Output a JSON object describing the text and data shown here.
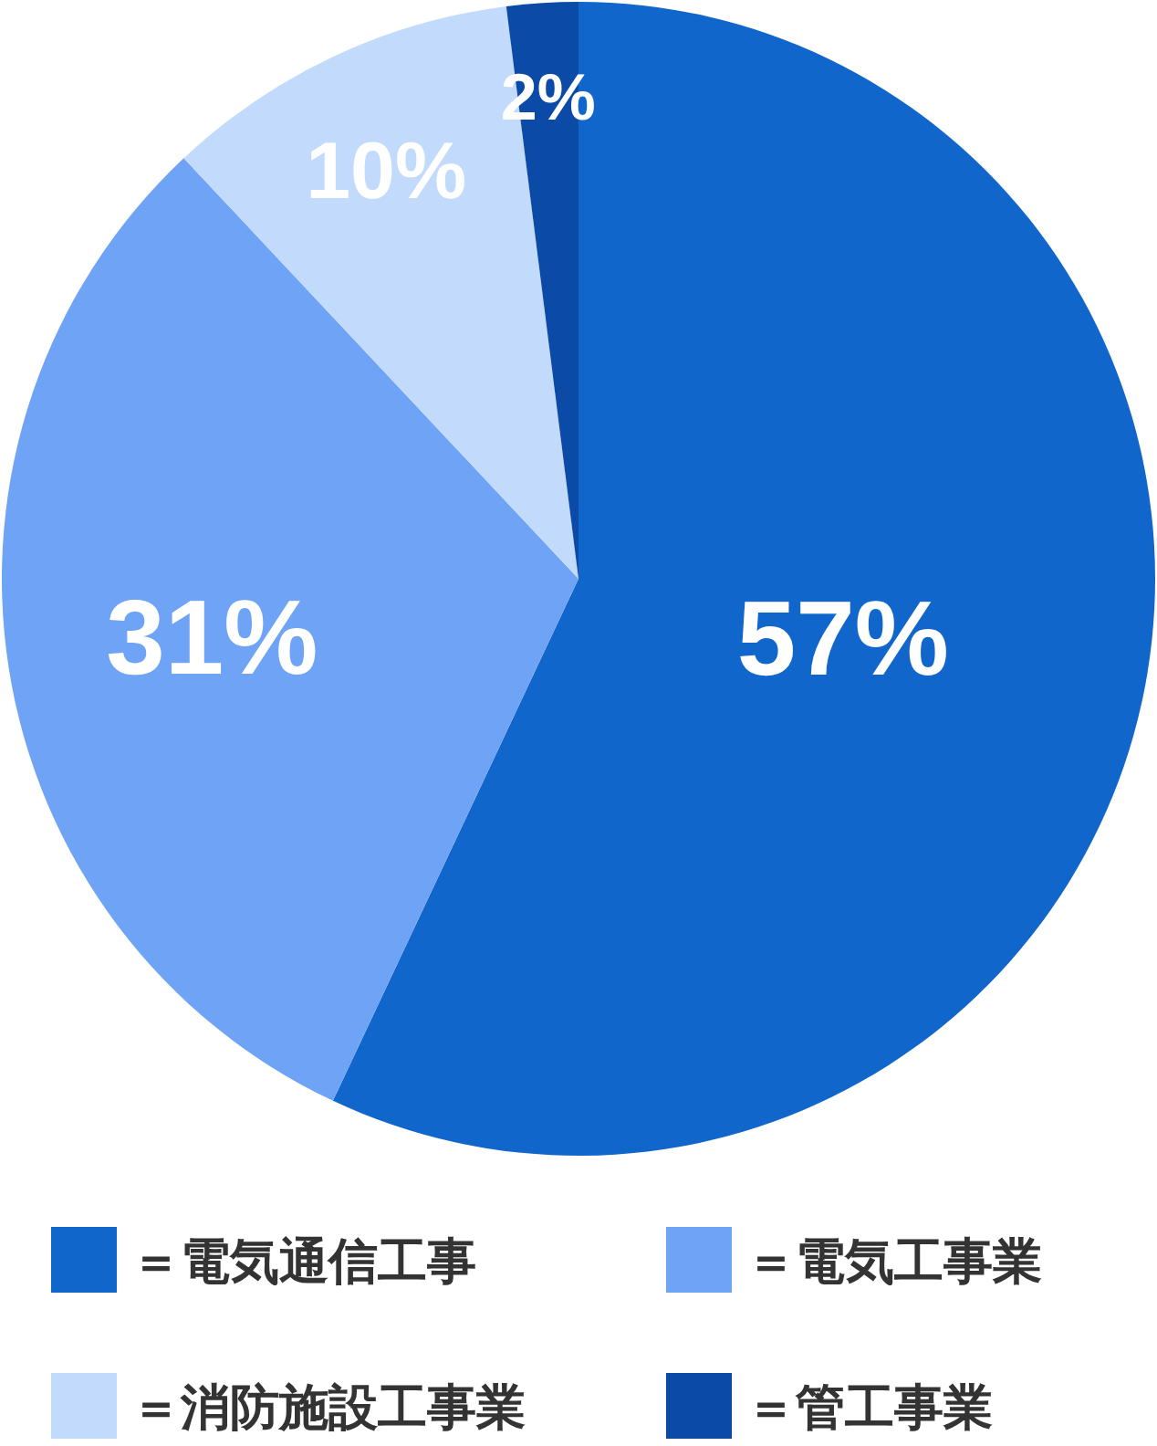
{
  "chart_data": {
    "type": "pie",
    "categories": [
      "＝電気通信工事",
      "＝電気工事業",
      "＝消防施設工事業",
      "＝管工事業"
    ],
    "values": [
      57,
      31,
      10,
      2
    ],
    "colors": [
      "#1166cc",
      "#6fa3f5",
      "#c2dafc",
      "#0b4aa6"
    ],
    "value_labels": [
      "57%",
      "31%",
      "10%",
      "2%"
    ],
    "legend": "bottom"
  }
}
